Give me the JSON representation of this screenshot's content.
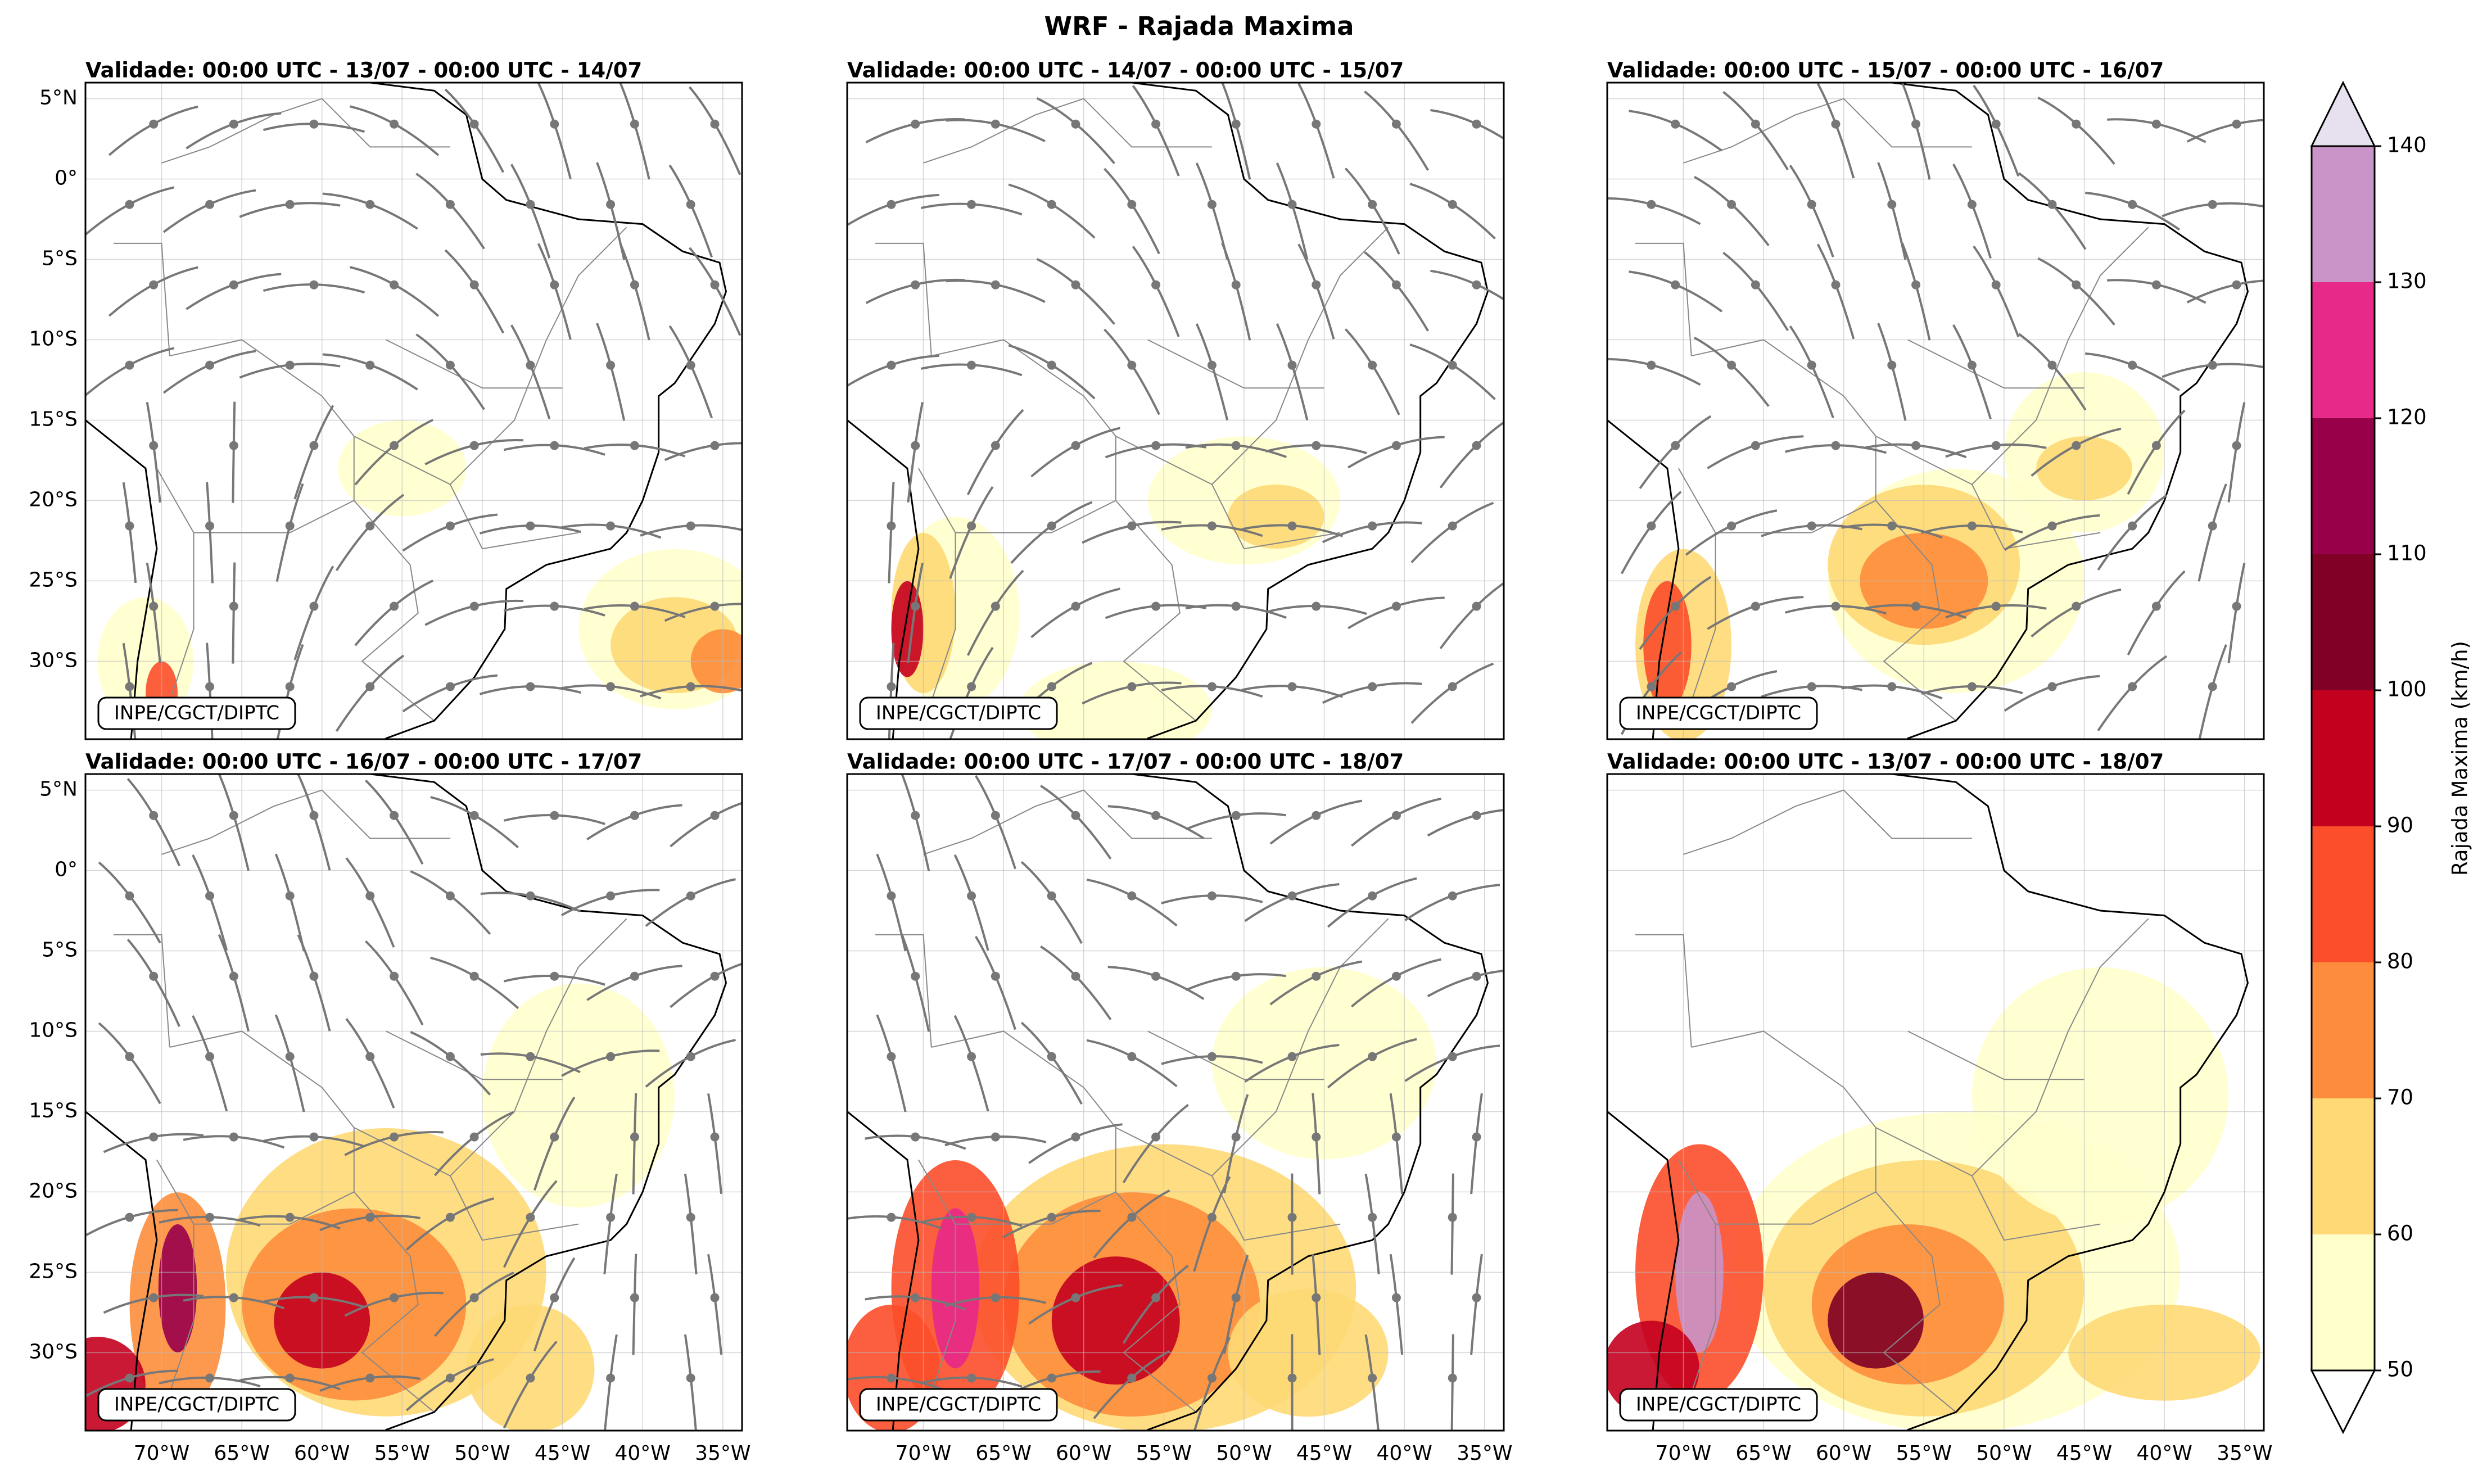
{
  "title": "WRF - Rajada Maxima",
  "panels": [
    {
      "title": "Validade: 00:00 UTC - 13/07 - 00:00 UTC - 14/07",
      "credit": "INPE/CGCT/DIPTC"
    },
    {
      "title": "Validade: 00:00 UTC - 14/07 - 00:00 UTC - 15/07",
      "credit": "INPE/CGCT/DIPTC"
    },
    {
      "title": "Validade: 00:00 UTC - 15/07 - 00:00 UTC - 16/07",
      "credit": "INPE/CGCT/DIPTC"
    },
    {
      "title": "Validade: 00:00 UTC - 16/07 - 00:00 UTC - 17/07",
      "credit": "INPE/CGCT/DIPTC"
    },
    {
      "title": "Validade: 00:00 UTC - 17/07 - 00:00 UTC - 18/07",
      "credit": "INPE/CGCT/DIPTC"
    },
    {
      "title": "Validade: 00:00 UTC - 13/07 - 00:00 UTC - 18/07",
      "credit": "INPE/CGCT/DIPTC"
    }
  ],
  "map": {
    "lon_range": [
      -74.75,
      -33.8
    ],
    "lat_range": [
      -34.85,
      6.0
    ],
    "lat_ticks": [
      {
        "value": 5,
        "label": "5°N"
      },
      {
        "value": 0,
        "label": "0°"
      },
      {
        "value": -5,
        "label": "5°S"
      },
      {
        "value": -10,
        "label": "10°S"
      },
      {
        "value": -15,
        "label": "15°S"
      },
      {
        "value": -20,
        "label": "20°S"
      },
      {
        "value": -25,
        "label": "25°S"
      },
      {
        "value": -30,
        "label": "30°S"
      }
    ],
    "lon_ticks": [
      {
        "value": -70,
        "label": "70°W"
      },
      {
        "value": -65,
        "label": "65°W"
      },
      {
        "value": -60,
        "label": "60°W"
      },
      {
        "value": -55,
        "label": "55°W"
      },
      {
        "value": -50,
        "label": "50°W"
      },
      {
        "value": -45,
        "label": "45°W"
      },
      {
        "value": -40,
        "label": "40°W"
      },
      {
        "value": -35,
        "label": "35°W"
      }
    ]
  },
  "colorbar": {
    "label": "Rajada Maxima (km/h)",
    "ticks": [
      50,
      60,
      70,
      80,
      90,
      100,
      110,
      120,
      130,
      140
    ],
    "colors": [
      "#ffffcc",
      "#fed976",
      "#fd8d3c",
      "#fc4e2a",
      "#c4001f",
      "#800026",
      "#98004a",
      "#e7298a",
      "#c994c7"
    ],
    "under_color": "#ffffff",
    "over_color": "#e7e1ef"
  }
}
